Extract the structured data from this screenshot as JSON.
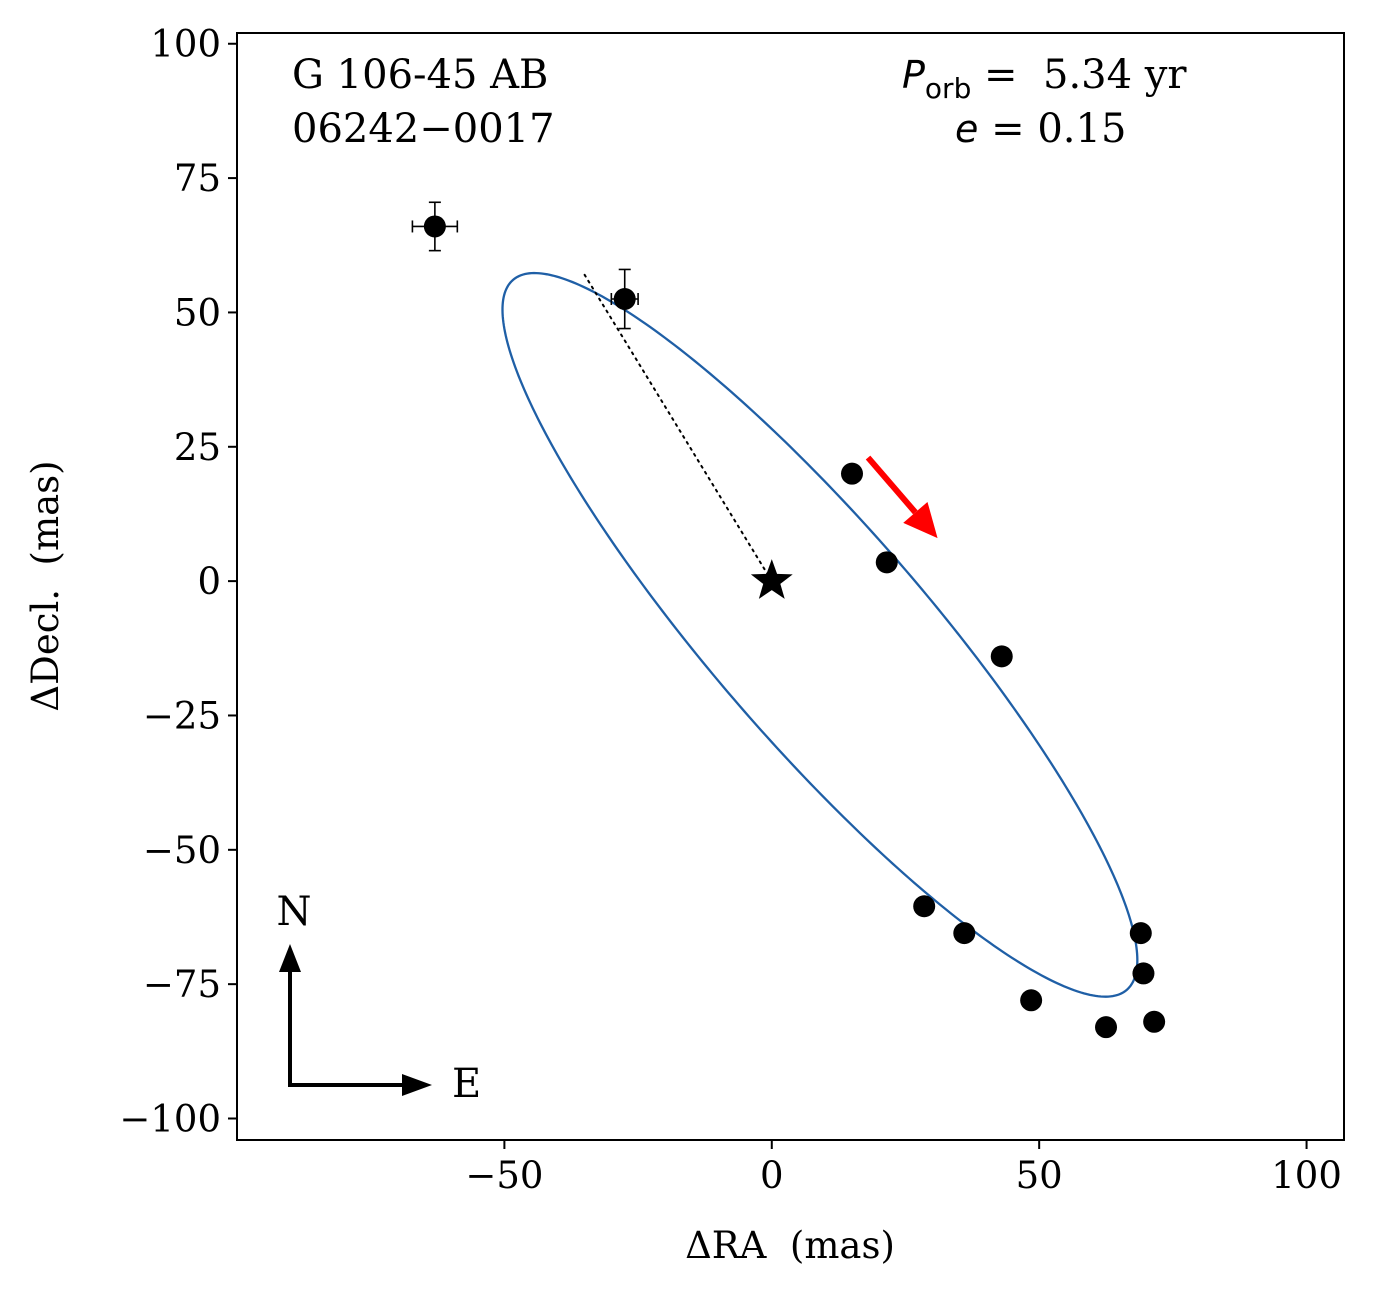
{
  "chart_data": {
    "type": "scatter",
    "title": "",
    "xlabel": "ΔRA  (mas)",
    "ylabel": "ΔDecl.  (mas)",
    "xlim": [
      -100,
      107
    ],
    "ylim": [
      -104,
      102
    ],
    "xticks": [
      -50,
      0,
      50,
      100
    ],
    "yticks": [
      100,
      75,
      50,
      25,
      0,
      -25,
      -50,
      -75,
      -100
    ],
    "xtick_labels": [
      "−50",
      "0",
      "50",
      "100"
    ],
    "ytick_labels": [
      "100",
      "75",
      "50",
      "25",
      "0",
      "−25",
      "−50",
      "−75",
      "−100"
    ],
    "grid": false,
    "object_name": "G 106-45 AB",
    "object_id": "06242−0017",
    "period_label": "P",
    "period_subscript": "orb",
    "period_value": " =  5.34 yr",
    "eccentricity_label": "e",
    "eccentricity_value": " = 0.15",
    "compass": {
      "north": "N",
      "east": "E"
    },
    "primary_star": {
      "x": 0,
      "y": 0
    },
    "orbit": {
      "center": [
        9,
        -10
      ],
      "semi_major": 87.5,
      "semi_minor": 20,
      "angle_deg": -49,
      "color": "#1f5fa6"
    },
    "periastron_line": {
      "from": [
        -35,
        57
      ],
      "to": [
        0,
        0
      ]
    },
    "motion_arrow": {
      "from": [
        18,
        23
      ],
      "to": [
        31,
        8
      ],
      "color": "#ff0000"
    },
    "points": [
      {
        "x": -63,
        "y": 66,
        "xerr": 4.2,
        "yerr": 4.5
      },
      {
        "x": -27.5,
        "y": 52.5,
        "xerr": 2.5,
        "yerr": 5.5
      },
      {
        "x": 15,
        "y": 20,
        "xerr": 0,
        "yerr": 0
      },
      {
        "x": 21.5,
        "y": 3.5,
        "xerr": 1.5,
        "yerr": 0
      },
      {
        "x": 43,
        "y": -14,
        "xerr": 0.8,
        "yerr": 0
      },
      {
        "x": 28.5,
        "y": -60.5,
        "xerr": 0,
        "yerr": 1.2
      },
      {
        "x": 36,
        "y": -65.5,
        "xerr": 0,
        "yerr": 0
      },
      {
        "x": 69,
        "y": -65.5,
        "xerr": 0,
        "yerr": 0
      },
      {
        "x": 69.5,
        "y": -73,
        "xerr": 0,
        "yerr": 0
      },
      {
        "x": 48.5,
        "y": -78,
        "xerr": 0,
        "yerr": 0
      },
      {
        "x": 62.5,
        "y": -83,
        "xerr": 0,
        "yerr": 0
      },
      {
        "x": 71.5,
        "y": -82,
        "xerr": 0,
        "yerr": 0
      }
    ]
  }
}
